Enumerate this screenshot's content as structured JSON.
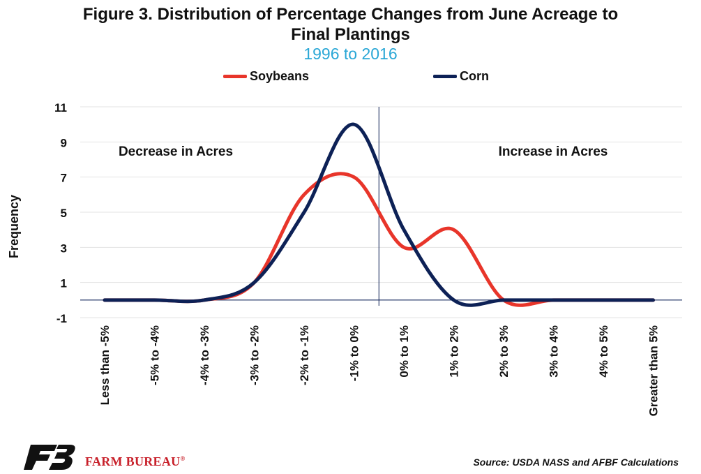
{
  "title_lines": [
    "Figure 3. Distribution of Percentage Changes from June Acreage to",
    "Final Plantings"
  ],
  "subtitle": "1996 to 2016",
  "source": "Source: USDA NASS and AFBF Calculations",
  "brand": {
    "name": "FARM BUREAU",
    "mark": "®",
    "color": "#c8202a"
  },
  "chart_data": {
    "type": "line",
    "title": "Figure 3. Distribution of Percentage Changes from June Acreage to Final Plantings",
    "subtitle": "1996 to 2016",
    "xlabel": "",
    "ylabel": "Frequency",
    "categories": [
      "Less than -5%",
      "-5% to -4%",
      "-4% to -3%",
      "-3% to -2%",
      "-2% to -1%",
      "-1% to 0%",
      "0% to 1%",
      "1% to 2%",
      "2% to 3%",
      "3% to 4%",
      "4% to 5%",
      "Greater than 5%"
    ],
    "series": [
      {
        "name": "Soybeans",
        "color": "#e8352a",
        "values": [
          0,
          0,
          0,
          1,
          6,
          7,
          3,
          4,
          0,
          0,
          0,
          0
        ]
      },
      {
        "name": "Corn",
        "color": "#0d2156",
        "values": [
          0,
          0,
          0,
          1,
          5,
          10,
          4,
          0,
          0,
          0,
          0,
          0
        ]
      }
    ],
    "ylim": [
      -1,
      11
    ],
    "yticks": [
      -1,
      1,
      3,
      5,
      7,
      9,
      11
    ],
    "grid": true,
    "smooth": true,
    "legend": "top-center",
    "annotations": [
      "Decrease in Acres",
      "Increase in Acres"
    ],
    "divider_after_category": "-1% to 0%"
  }
}
